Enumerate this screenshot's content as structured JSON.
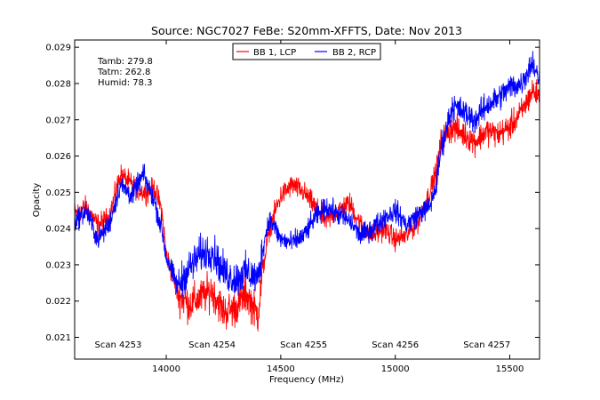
{
  "chart_data": {
    "type": "line",
    "title": "Source: NGC7027 FeBe: S20mm-XFFTS, Date: Nov 2013",
    "xlabel": "Frequency (MHz)",
    "ylabel": "Opacity",
    "xlim": [
      13600,
      15630
    ],
    "ylim": [
      0.0204,
      0.0292
    ],
    "x_ticks": [
      14000,
      14500,
      15000,
      15500
    ],
    "x_tick_labels": [
      "14000",
      "14500",
      "15000",
      "15500"
    ],
    "y_ticks": [
      0.021,
      0.022,
      0.023,
      0.024,
      0.025,
      0.026,
      0.027,
      0.028,
      0.029
    ],
    "y_tick_labels": [
      "0.021",
      "0.022",
      "0.023",
      "0.024",
      "0.025",
      "0.026",
      "0.027",
      "0.028",
      "0.029"
    ],
    "grid": false,
    "legend": "top-center",
    "weather": [
      "Tamb: 279.8",
      "Tatm: 262.8",
      "Humid: 78.3"
    ],
    "scans": [
      {
        "label": "Scan 4253",
        "x": 13790
      },
      {
        "label": "Scan 4254",
        "x": 14200
      },
      {
        "label": "Scan 4255",
        "x": 14600
      },
      {
        "label": "Scan 4256",
        "x": 15000
      },
      {
        "label": "Scan 4257",
        "x": 15400
      }
    ],
    "series": [
      {
        "name": "BB 1, LCP",
        "color": "#ff0000",
        "x": [
          13600,
          13650,
          13700,
          13750,
          13800,
          13850,
          13900,
          13950,
          13980,
          14000,
          14050,
          14100,
          14150,
          14200,
          14250,
          14300,
          14350,
          14400,
          14420,
          14450,
          14500,
          14550,
          14600,
          14650,
          14700,
          14750,
          14800,
          14850,
          14900,
          14950,
          15000,
          15050,
          15100,
          15150,
          15180,
          15200,
          15250,
          15300,
          15350,
          15400,
          15450,
          15500,
          15550,
          15600,
          15620
        ],
        "y": [
          0.0244,
          0.0246,
          0.0241,
          0.0243,
          0.0255,
          0.0252,
          0.025,
          0.0251,
          0.0245,
          0.0233,
          0.0222,
          0.0219,
          0.0221,
          0.0223,
          0.0217,
          0.0218,
          0.0222,
          0.0216,
          0.0228,
          0.024,
          0.0249,
          0.0252,
          0.025,
          0.0246,
          0.0242,
          0.0245,
          0.0247,
          0.0241,
          0.0238,
          0.024,
          0.0237,
          0.0238,
          0.0242,
          0.025,
          0.0256,
          0.0264,
          0.0268,
          0.0266,
          0.0264,
          0.0267,
          0.0266,
          0.0268,
          0.0272,
          0.0278,
          0.0277
        ]
      },
      {
        "name": "BB 2, RCP",
        "color": "#0000ff",
        "x": [
          13600,
          13650,
          13700,
          13750,
          13800,
          13850,
          13900,
          13950,
          13980,
          14000,
          14050,
          14100,
          14150,
          14200,
          14250,
          14300,
          14350,
          14400,
          14420,
          14450,
          14500,
          14550,
          14600,
          14650,
          14700,
          14750,
          14800,
          14850,
          14900,
          14950,
          15000,
          15050,
          15100,
          15150,
          15180,
          15200,
          15250,
          15300,
          15350,
          15400,
          15450,
          15500,
          15550,
          15600,
          15620
        ],
        "y": [
          0.0242,
          0.0245,
          0.0237,
          0.0241,
          0.0252,
          0.0249,
          0.0255,
          0.0247,
          0.024,
          0.0232,
          0.0224,
          0.0229,
          0.0233,
          0.0234,
          0.0228,
          0.0226,
          0.0228,
          0.0226,
          0.0234,
          0.0243,
          0.0237,
          0.0236,
          0.0238,
          0.0243,
          0.0246,
          0.0244,
          0.0242,
          0.0238,
          0.024,
          0.0243,
          0.0245,
          0.0241,
          0.0244,
          0.0246,
          0.0252,
          0.0262,
          0.0274,
          0.0272,
          0.027,
          0.0274,
          0.0276,
          0.0279,
          0.028,
          0.0286,
          0.0282
        ]
      }
    ]
  }
}
